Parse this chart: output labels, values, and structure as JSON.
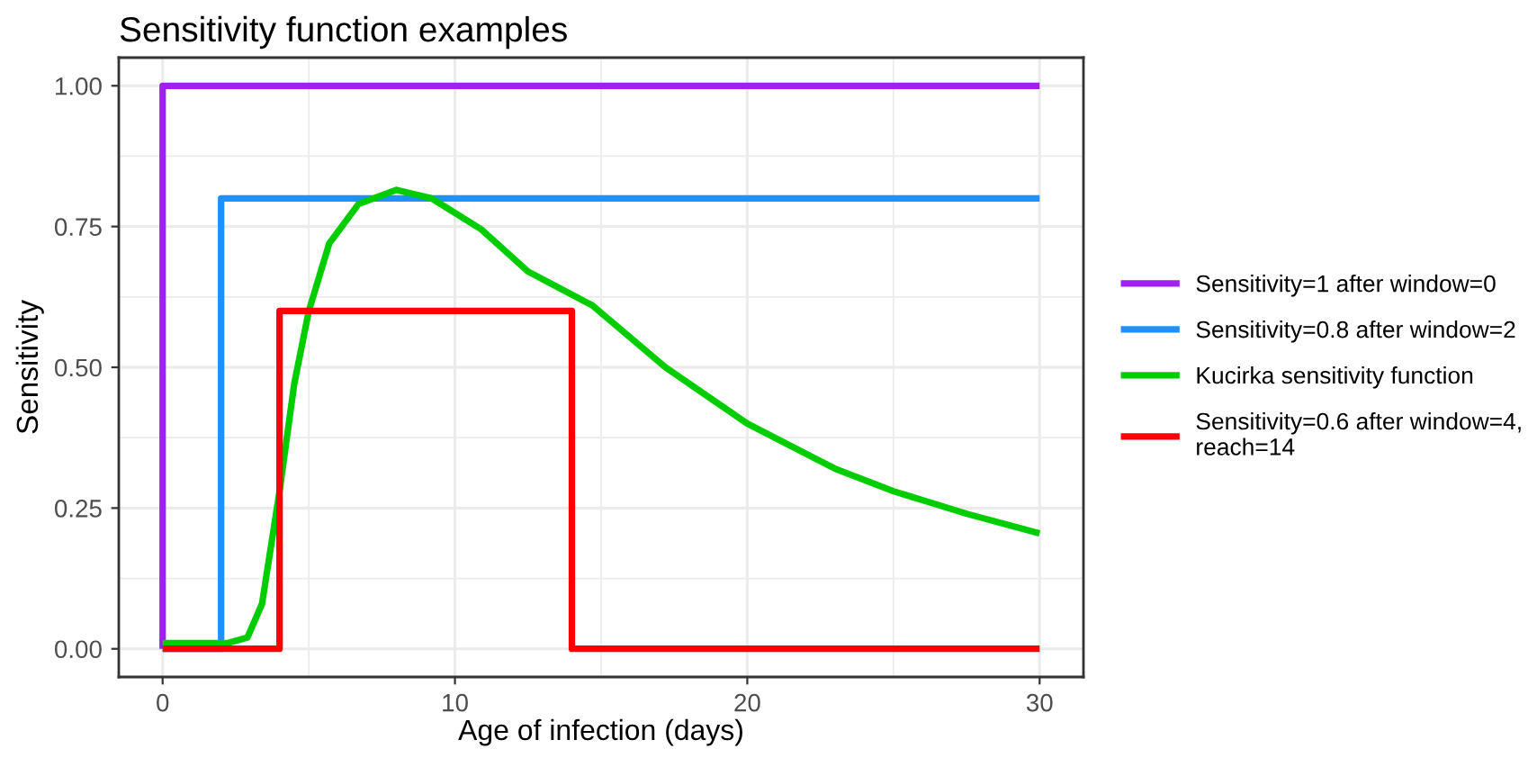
{
  "chart_data": {
    "type": "line",
    "title": "Sensitivity function examples",
    "xlabel": "Age of infection (days)",
    "ylabel": "Sensitivity",
    "xlim": [
      -1.5,
      31.5
    ],
    "xticks": [
      0,
      10,
      20,
      30
    ],
    "ylim": [
      -0.05,
      1.05
    ],
    "yticks": [
      {
        "value": 0,
        "label": "0.00"
      },
      {
        "value": 0.25,
        "label": "0.25"
      },
      {
        "value": 0.5,
        "label": "0.50"
      },
      {
        "value": 0.75,
        "label": "0.75"
      },
      {
        "value": 1,
        "label": "1.00"
      }
    ],
    "grid": true,
    "legend": "right",
    "line_style": "solid",
    "marker": "none",
    "series": [
      {
        "name": "Sensitivity=1 after window=0",
        "color": "#a020f0",
        "x": [
          0,
          0,
          30
        ],
        "values": [
          0,
          1,
          1
        ]
      },
      {
        "name": "Sensitivity=0.8 after window=2",
        "color": "#1e90ff",
        "x": [
          0,
          2,
          2,
          30
        ],
        "values": [
          0,
          0,
          0.8,
          0.8
        ]
      },
      {
        "name": "Kucirka sensitivity function",
        "color": "#00cd00",
        "x": [
          0,
          2.2,
          2.9,
          3.4,
          4.0,
          4.5,
          5.0,
          5.7,
          6.7,
          8.0,
          9.2,
          10.9,
          12.5,
          14.7,
          17.2,
          20,
          23,
          25,
          27.5,
          30
        ],
        "values": [
          0.01,
          0.01,
          0.02,
          0.08,
          0.28,
          0.47,
          0.6,
          0.72,
          0.79,
          0.815,
          0.8,
          0.745,
          0.67,
          0.61,
          0.5,
          0.4,
          0.32,
          0.28,
          0.24,
          0.205
        ]
      },
      {
        "name": "Sensitivity=0.6 after window=4,\nreach=14",
        "color": "#ff0000",
        "x": [
          0,
          4,
          4,
          14,
          14,
          30
        ],
        "values": [
          0,
          0,
          0.6,
          0.6,
          0,
          0
        ]
      }
    ]
  }
}
